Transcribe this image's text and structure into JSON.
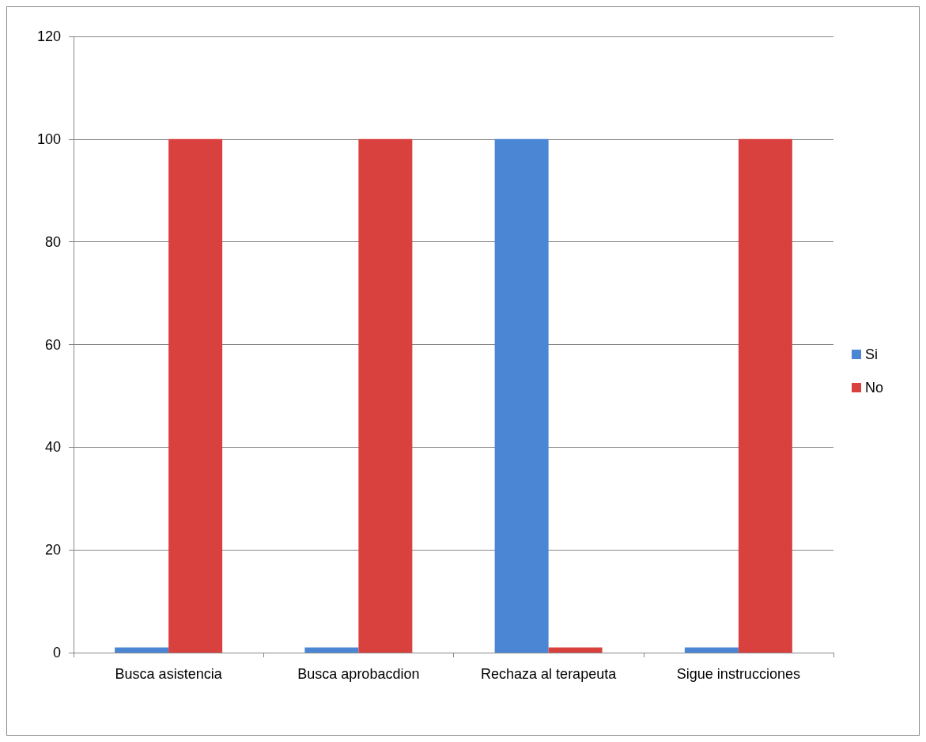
{
  "chart_data": {
    "type": "bar",
    "categories": [
      "Busca asistencia",
      "Busca aprobacdion",
      "Rechaza al terapeuta",
      "Sigue instrucciones"
    ],
    "series": [
      {
        "name": "Si",
        "color": "#4a86d4",
        "values": [
          1,
          1,
          100,
          1
        ]
      },
      {
        "name": "No",
        "color": "#d9413e",
        "values": [
          100,
          100,
          1,
          100
        ]
      }
    ],
    "ylim": [
      0,
      120
    ],
    "yticks": [
      0,
      20,
      40,
      60,
      80,
      100,
      120
    ],
    "grid": "y",
    "legend": "right"
  }
}
